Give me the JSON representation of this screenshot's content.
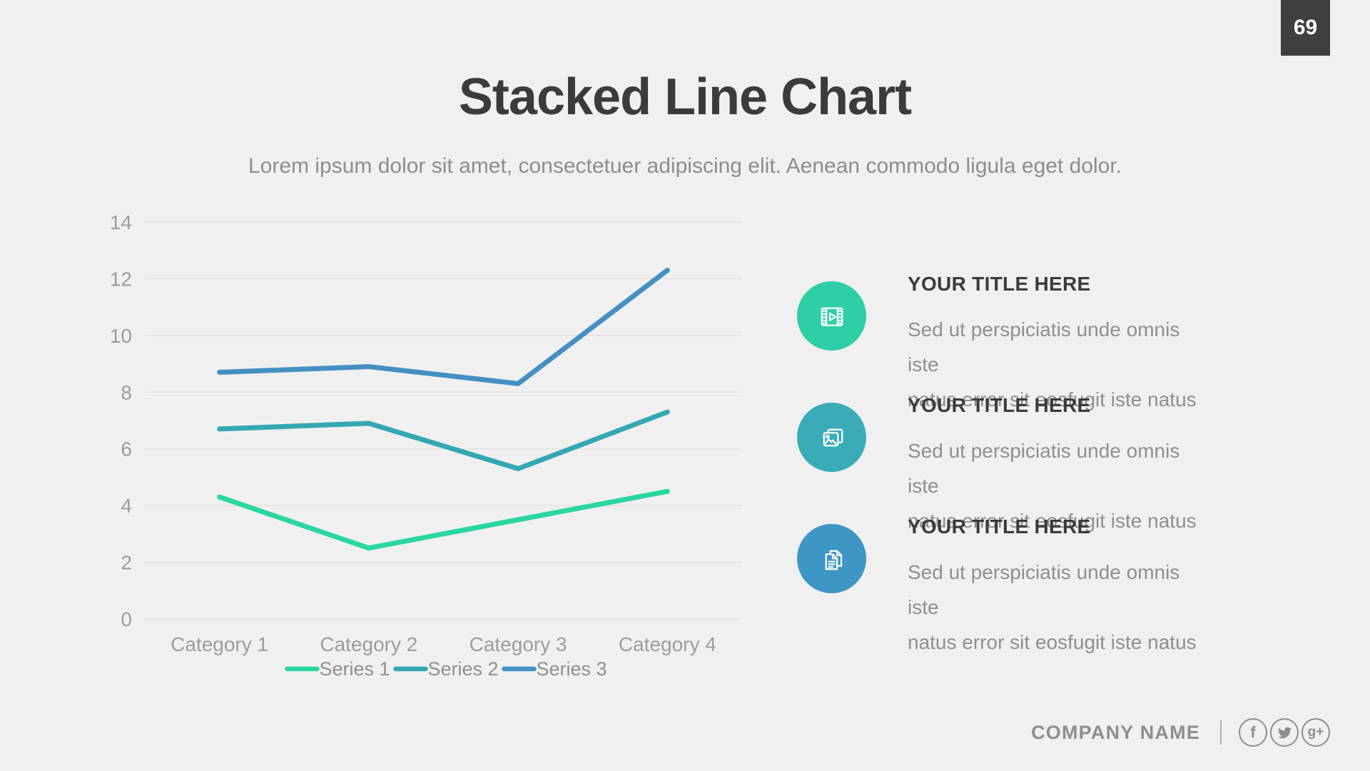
{
  "page": {
    "number": "69"
  },
  "header": {
    "title": "Stacked Line Chart",
    "subtitle": "Lorem ipsum dolor sit amet, consectetuer adipiscing elit. Aenean commodo ligula eget dolor."
  },
  "chart_data": {
    "type": "line",
    "title": "Stacked Line Chart",
    "categories": [
      "Category 1",
      "Category 2",
      "Category 3",
      "Category 4"
    ],
    "series": [
      {
        "name": "Series 1",
        "color": "#2bd6a2",
        "values": [
          4.3,
          2.5,
          3.5,
          4.5
        ]
      },
      {
        "name": "Series 2",
        "color": "#34a8b2",
        "values": [
          6.7,
          6.9,
          5.3,
          7.3
        ]
      },
      {
        "name": "Series 3",
        "color": "#4590c2",
        "values": [
          8.7,
          8.9,
          8.3,
          12.3
        ]
      }
    ],
    "ylim": [
      0,
      14
    ],
    "ytick_step": 2,
    "grid": true,
    "legend_position": "bottom"
  },
  "colors": {
    "background": "#f0f0f1",
    "badge_bg": "#3f3f3f",
    "gridline": "#e3e3e3",
    "axis_label": "#9c9c9c",
    "legend_label": "#8f8f8f",
    "heading_text": "#3b3b3b",
    "body_text": "#8f8f8f",
    "footer_gray": "#8e8e8e"
  },
  "features": [
    {
      "icon": "film-icon",
      "color": "#2ecfa6",
      "title": "YOUR TITLE HERE",
      "lines": [
        "Sed ut perspiciatis unde omnis iste",
        "natus error sit eosfugit iste natus"
      ]
    },
    {
      "icon": "photos-icon",
      "color": "#3aacb8",
      "title": "YOUR TITLE HERE",
      "lines": [
        "Sed ut perspiciatis unde omnis iste",
        "natus error sit eosfugit iste natus"
      ]
    },
    {
      "icon": "documents-icon",
      "color": "#3e96c4",
      "title": "YOUR TITLE HERE",
      "lines": [
        "Sed ut perspiciatis unde omnis iste",
        "natus error sit eosfugit iste natus"
      ]
    }
  ],
  "footer": {
    "company": "COMPANY NAME",
    "social": [
      {
        "name": "facebook",
        "glyph": "f"
      },
      {
        "name": "twitter",
        "glyph": ""
      },
      {
        "name": "google-plus",
        "glyph": "g+"
      }
    ]
  }
}
